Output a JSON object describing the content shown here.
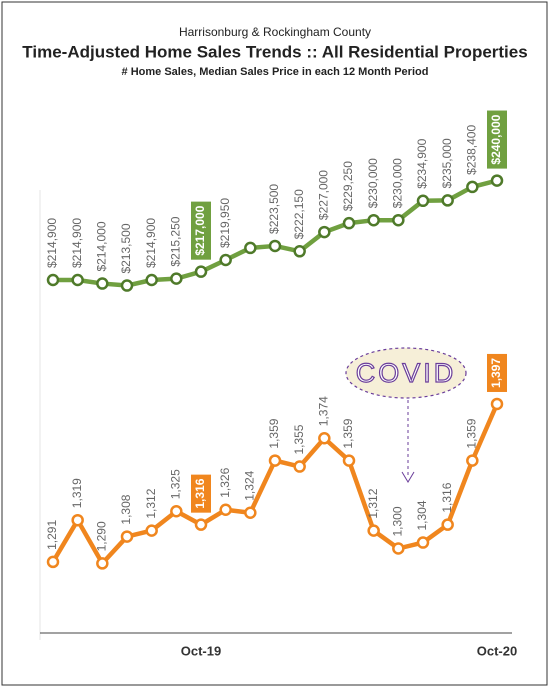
{
  "chart_data": {
    "type": "line",
    "title": "Time-Adjusted Home Sales Trends  ::  All Residential Properties",
    "supertitle": "Harrisonburg & Rockingham County",
    "subtitle": "# Home Sales, Median Sales Price in each 12 Month Period",
    "annotation": "COVID",
    "categories": [
      null,
      null,
      null,
      null,
      null,
      null,
      "Oct-19",
      null,
      null,
      null,
      null,
      null,
      null,
      null,
      null,
      null,
      null,
      null,
      "Oct-20"
    ],
    "series": [
      {
        "name": "Median Sales Price",
        "color": "#70a040",
        "dark": "#4f7a2a",
        "ylim": [
          200000,
          250000
        ],
        "highlight": [
          6,
          18
        ],
        "values": [
          214900,
          214900,
          214000,
          213500,
          214900,
          215250,
          217000,
          219950,
          223000,
          223500,
          222150,
          227000,
          229250,
          230000,
          230000,
          234900,
          235000,
          238400,
          240000
        ],
        "value_labels": [
          "$214,900",
          "$214,900",
          "$214,000",
          "$213,500",
          "$214,900",
          "$215,250",
          "$217,000",
          "$219,950",
          null,
          "$223,500",
          "$222,150",
          "$227,000",
          "$229,250",
          "$230,000",
          "$230,000",
          "$234,900",
          "$235,000",
          "$238,400",
          "$240,000"
        ]
      },
      {
        "name": "# Home Sales",
        "color": "#f0861e",
        "dark": "#f0861e",
        "ylim": [
          1250,
          1450
        ],
        "highlight": [
          6,
          18
        ],
        "values": [
          1291,
          1319,
          1290,
          1308,
          1312,
          1325,
          1316,
          1326,
          1324,
          1359,
          1355,
          1374,
          1359,
          1312,
          1300,
          1304,
          1316,
          1359,
          1397
        ],
        "value_labels": [
          "1,291",
          "1,319",
          "1,290",
          "1,308",
          "1,312",
          "1,325",
          "1,316",
          "1,326",
          "1,324",
          "1,359",
          "1,355",
          "1,374",
          "1,359",
          "1,312",
          "1,300",
          "1,304",
          "1,316",
          "1,359",
          "1,397"
        ]
      }
    ]
  }
}
